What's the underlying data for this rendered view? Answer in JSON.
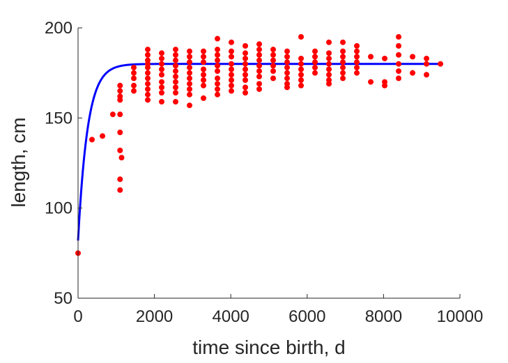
{
  "chart_data": {
    "type": "scatter",
    "title": "",
    "xlabel": "time since birth, d",
    "ylabel": "length, cm",
    "xlim": [
      0,
      10000
    ],
    "ylim": [
      50,
      200
    ],
    "xticks": [
      0,
      2000,
      4000,
      6000,
      8000,
      10000
    ],
    "yticks": [
      50,
      100,
      150,
      200
    ],
    "grid": false,
    "box": "left-bottom-axes",
    "colors": {
      "points": "#ff0000",
      "fit": "#0000ff",
      "axes": "#262626"
    },
    "series": [
      {
        "kind": "points",
        "points": [
          [
            0,
            75
          ],
          [
            365,
            138
          ],
          [
            640,
            140
          ],
          [
            910,
            152
          ],
          [
            1100,
            168
          ],
          [
            1100,
            165
          ],
          [
            1100,
            162
          ],
          [
            1100,
            160
          ],
          [
            1100,
            152
          ],
          [
            1100,
            142
          ],
          [
            1100,
            132
          ],
          [
            1100,
            116
          ],
          [
            1100,
            110
          ],
          [
            1140,
            128
          ],
          [
            1460,
            178
          ],
          [
            1460,
            175
          ],
          [
            1460,
            172
          ],
          [
            1460,
            168
          ],
          [
            1460,
            165
          ],
          [
            1825,
            188
          ],
          [
            1825,
            185
          ],
          [
            1825,
            182
          ],
          [
            1825,
            180
          ],
          [
            1825,
            178
          ],
          [
            1825,
            175
          ],
          [
            1825,
            172
          ],
          [
            1825,
            169
          ],
          [
            1825,
            166
          ],
          [
            1825,
            163
          ],
          [
            1825,
            160
          ],
          [
            2190,
            186
          ],
          [
            2190,
            183
          ],
          [
            2190,
            180
          ],
          [
            2190,
            177
          ],
          [
            2190,
            174
          ],
          [
            2190,
            170
          ],
          [
            2190,
            167
          ],
          [
            2190,
            164
          ],
          [
            2190,
            159
          ],
          [
            2555,
            188
          ],
          [
            2555,
            185
          ],
          [
            2555,
            182
          ],
          [
            2555,
            179
          ],
          [
            2555,
            176
          ],
          [
            2555,
            173
          ],
          [
            2555,
            170
          ],
          [
            2555,
            167
          ],
          [
            2555,
            164
          ],
          [
            2555,
            159
          ],
          [
            2920,
            187
          ],
          [
            2920,
            184
          ],
          [
            2920,
            181
          ],
          [
            2920,
            178
          ],
          [
            2920,
            175
          ],
          [
            2920,
            172
          ],
          [
            2920,
            169
          ],
          [
            2920,
            166
          ],
          [
            2920,
            163
          ],
          [
            2920,
            157
          ],
          [
            3285,
            187
          ],
          [
            3285,
            184
          ],
          [
            3285,
            181
          ],
          [
            3285,
            177
          ],
          [
            3285,
            174
          ],
          [
            3285,
            171
          ],
          [
            3285,
            168
          ],
          [
            3285,
            161
          ],
          [
            3650,
            194
          ],
          [
            3650,
            188
          ],
          [
            3650,
            185
          ],
          [
            3650,
            182
          ],
          [
            3650,
            179
          ],
          [
            3650,
            176
          ],
          [
            3650,
            172
          ],
          [
            3650,
            169
          ],
          [
            3650,
            166
          ],
          [
            3650,
            163
          ],
          [
            4015,
            192
          ],
          [
            4015,
            187
          ],
          [
            4015,
            184
          ],
          [
            4015,
            180
          ],
          [
            4015,
            177
          ],
          [
            4015,
            174
          ],
          [
            4015,
            171
          ],
          [
            4015,
            168
          ],
          [
            4015,
            165
          ],
          [
            4380,
            190
          ],
          [
            4380,
            186
          ],
          [
            4380,
            183
          ],
          [
            4380,
            180
          ],
          [
            4380,
            177
          ],
          [
            4380,
            174
          ],
          [
            4380,
            171
          ],
          [
            4380,
            167
          ],
          [
            4380,
            164
          ],
          [
            4745,
            191
          ],
          [
            4745,
            188
          ],
          [
            4745,
            185
          ],
          [
            4745,
            182
          ],
          [
            4745,
            179
          ],
          [
            4745,
            176
          ],
          [
            4745,
            173
          ],
          [
            4745,
            169
          ],
          [
            4745,
            166
          ],
          [
            5110,
            188
          ],
          [
            5110,
            185
          ],
          [
            5110,
            182
          ],
          [
            5110,
            179
          ],
          [
            5110,
            176
          ],
          [
            5110,
            172
          ],
          [
            5475,
            187
          ],
          [
            5475,
            184
          ],
          [
            5475,
            181
          ],
          [
            5475,
            178
          ],
          [
            5475,
            175
          ],
          [
            5475,
            172
          ],
          [
            5475,
            169
          ],
          [
            5475,
            167
          ],
          [
            5840,
            195
          ],
          [
            5840,
            183
          ],
          [
            5840,
            180
          ],
          [
            5840,
            177
          ],
          [
            5840,
            174
          ],
          [
            5840,
            171
          ],
          [
            5840,
            168
          ],
          [
            6205,
            187
          ],
          [
            6205,
            184
          ],
          [
            6205,
            181
          ],
          [
            6205,
            178
          ],
          [
            6205,
            175
          ],
          [
            6570,
            192
          ],
          [
            6570,
            186
          ],
          [
            6570,
            183
          ],
          [
            6570,
            180
          ],
          [
            6570,
            177
          ],
          [
            6570,
            174
          ],
          [
            6570,
            171
          ],
          [
            6570,
            169
          ],
          [
            6935,
            192
          ],
          [
            6935,
            187
          ],
          [
            6935,
            184
          ],
          [
            6935,
            181
          ],
          [
            6935,
            178
          ],
          [
            6935,
            175
          ],
          [
            6935,
            172
          ],
          [
            7300,
            190
          ],
          [
            7300,
            187
          ],
          [
            7300,
            184
          ],
          [
            7300,
            181
          ],
          [
            7300,
            178
          ],
          [
            7300,
            175
          ],
          [
            7665,
            184
          ],
          [
            7665,
            170
          ],
          [
            8030,
            183
          ],
          [
            8030,
            170
          ],
          [
            8030,
            168
          ],
          [
            8395,
            195
          ],
          [
            8395,
            190
          ],
          [
            8395,
            185
          ],
          [
            8395,
            180
          ],
          [
            8395,
            176
          ],
          [
            8395,
            172
          ],
          [
            8760,
            184
          ],
          [
            8760,
            175
          ],
          [
            9125,
            183
          ],
          [
            9125,
            180
          ],
          [
            9125,
            174
          ],
          [
            9490,
            180
          ]
        ]
      },
      {
        "kind": "line",
        "model": "von-bertalanffy",
        "L0": 82,
        "Linf": 180,
        "r": 0.004,
        "x_range": [
          0,
          9500
        ]
      }
    ]
  }
}
